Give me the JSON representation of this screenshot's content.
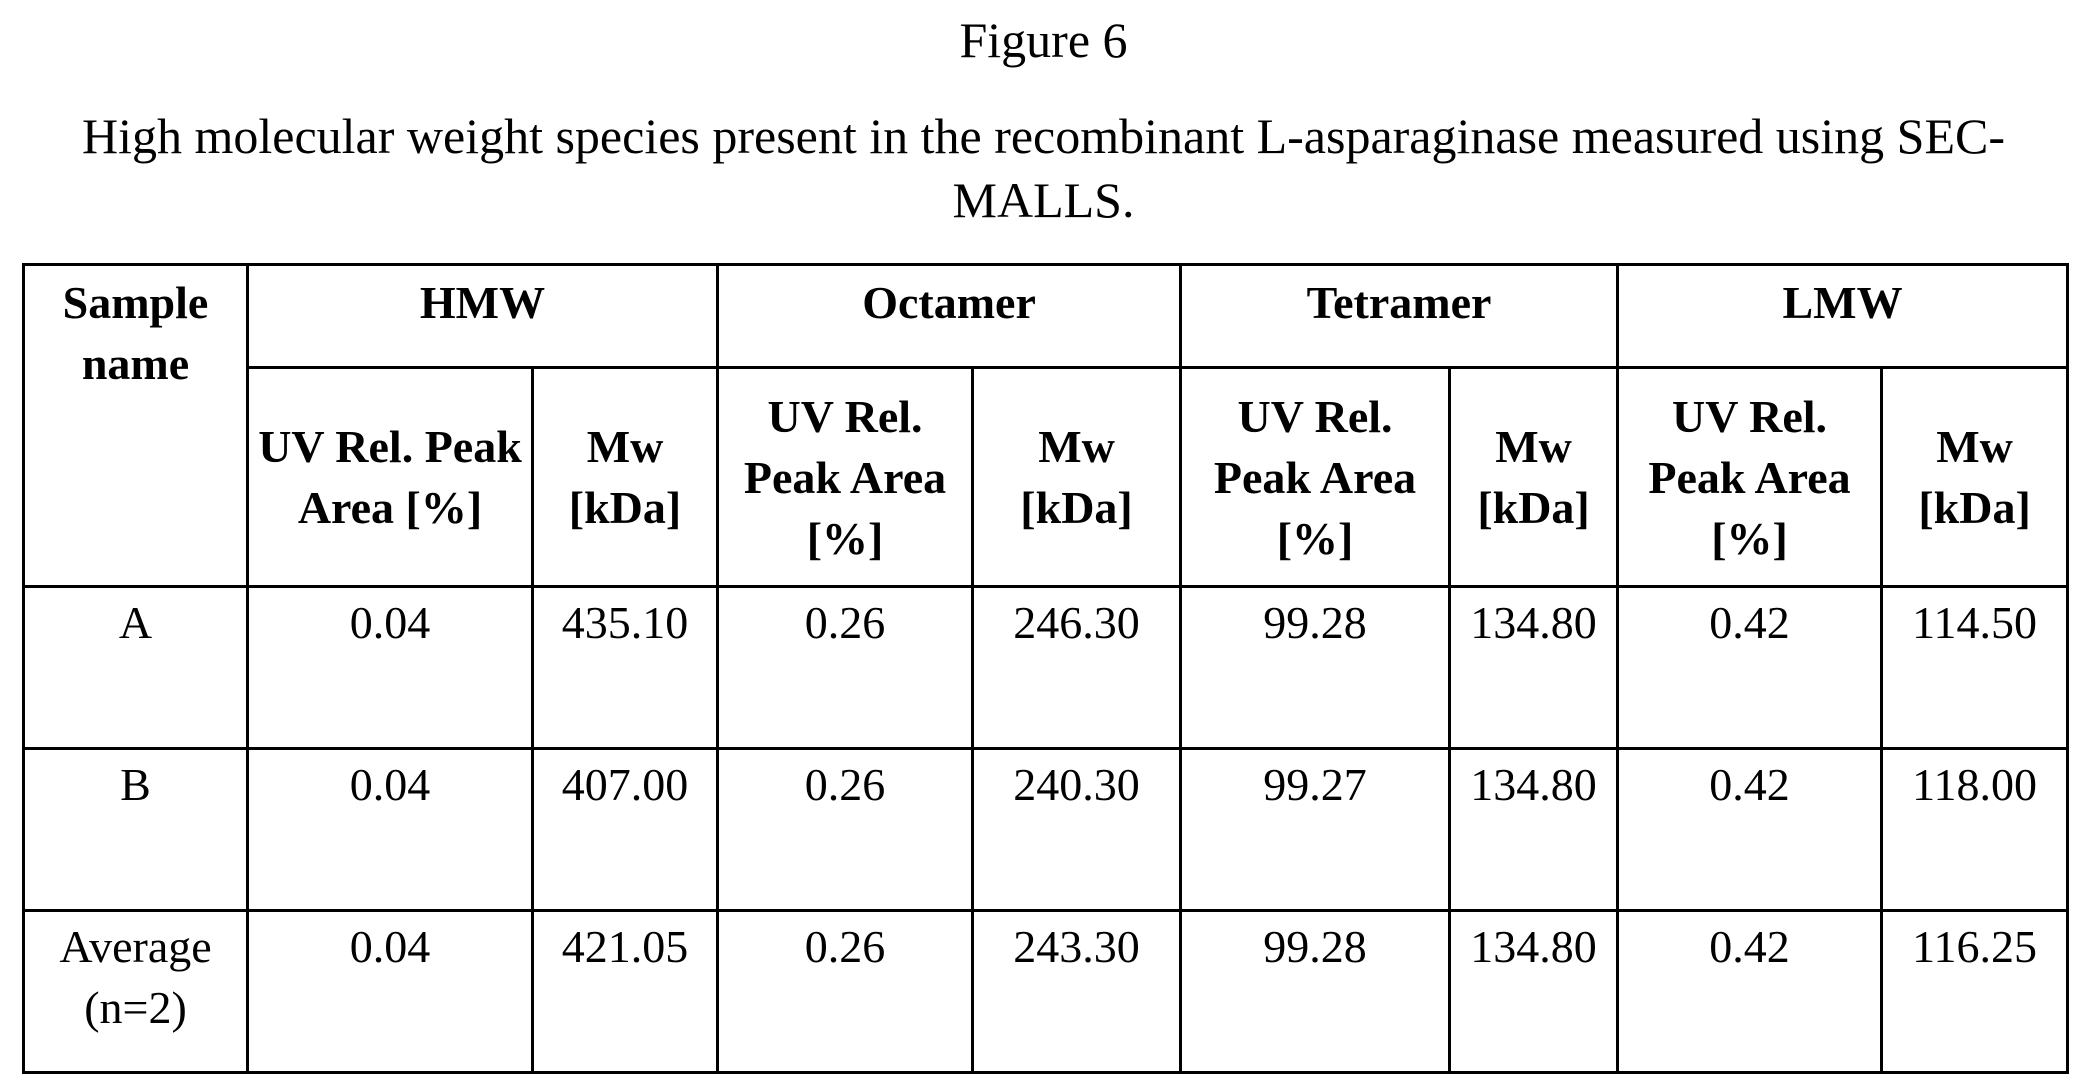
{
  "figure_label": "Figure 6",
  "caption": "High molecular weight species present in the recombinant L-asparaginase measured using SEC-MALLS.",
  "table": {
    "sample_header": "Sample name",
    "groups": [
      "HMW",
      "Octamer",
      "Tetramer",
      "LMW"
    ],
    "sub_headers": {
      "uv": "UV Rel. Peak Area [%]",
      "mw": "Mw [kDa]"
    },
    "rows": [
      {
        "sample": "A",
        "hmw_uv": "0.04",
        "hmw_mw": "435.10",
        "oct_uv": "0.26",
        "oct_mw": "246.30",
        "tet_uv": "99.28",
        "tet_mw": "134.80",
        "lmw_uv": "0.42",
        "lmw_mw": "114.50"
      },
      {
        "sample": "B",
        "hmw_uv": "0.04",
        "hmw_mw": "407.00",
        "oct_uv": "0.26",
        "oct_mw": "240.30",
        "tet_uv": "99.27",
        "tet_mw": "134.80",
        "lmw_uv": "0.42",
        "lmw_mw": "118.00"
      },
      {
        "sample": "Average (n=2)",
        "hmw_uv": "0.04",
        "hmw_mw": "421.05",
        "oct_uv": "0.26",
        "oct_mw": "243.30",
        "tet_uv": "99.28",
        "tet_mw": "134.80",
        "lmw_uv": "0.42",
        "lmw_mw": "116.25"
      }
    ]
  }
}
